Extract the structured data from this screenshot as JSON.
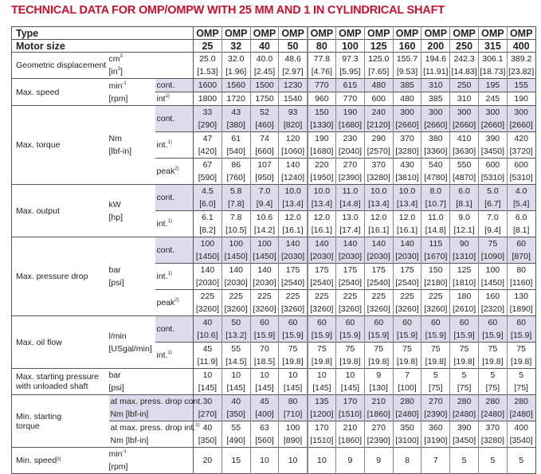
{
  "title": "TECHNICAL DATA FOR OMP/OMPW WITH 25 MM AND 1 IN CYLINDRICAL SHAFT",
  "header": {
    "type_label": "Type",
    "size_label": "Motor size",
    "types": [
      "OMP",
      "OMP",
      "OMP",
      "OMP",
      "OMP",
      "OMP",
      "OMP",
      "OMP",
      "OMP",
      "OMP",
      "OMP",
      "OMP"
    ],
    "sizes": [
      "25",
      "32",
      "40",
      "50",
      "80",
      "100",
      "125",
      "160",
      "200",
      "250",
      "315",
      "400"
    ]
  },
  "accent": "#c8102e",
  "shade": "#dcdcec",
  "groups": [
    {
      "label": [
        "Geometric displacement"
      ],
      "unit": [
        {
          "t": "cm",
          "sup": "3"
        },
        {
          "t": "[in",
          "sup": "3",
          "tail": "]"
        }
      ],
      "subs": [
        {
          "label": [],
          "shaded": false,
          "values": [
            [
              "25.0",
              "[1.53]"
            ],
            [
              "32.0",
              "[1.96]"
            ],
            [
              "40.0",
              "[2.45]"
            ],
            [
              "48.6",
              "[2.97]"
            ],
            [
              "77.8",
              "[4.76]"
            ],
            [
              "97.3",
              "[5.95]"
            ],
            [
              "125.0",
              "[7.65]"
            ],
            [
              "155.7",
              "[9.53]"
            ],
            [
              "194.6",
              "[11.91]"
            ],
            [
              "242.3",
              "[14.83]"
            ],
            [
              "306.1",
              "[18.73]"
            ],
            [
              "389.2",
              "[23.82]"
            ]
          ]
        }
      ]
    },
    {
      "label": [
        "Max. speed"
      ],
      "unit": [
        {
          "t": "min",
          "sup": "-1"
        },
        {
          "t": "[rpm]"
        }
      ],
      "subs": [
        {
          "label": [
            {
              "t": "cont."
            }
          ],
          "shaded": true,
          "values": [
            [
              "1600"
            ],
            [
              "1560"
            ],
            [
              "1500"
            ],
            [
              "1230"
            ],
            [
              "770"
            ],
            [
              "615"
            ],
            [
              "480"
            ],
            [
              "385"
            ],
            [
              "310"
            ],
            [
              "250"
            ],
            [
              "195"
            ],
            [
              "155"
            ]
          ]
        },
        {
          "label": [
            {
              "t": "int",
              "sup": "1)"
            }
          ],
          "shaded": false,
          "values": [
            [
              "1800"
            ],
            [
              "1720"
            ],
            [
              "1750"
            ],
            [
              "1540"
            ],
            [
              "960"
            ],
            [
              "770"
            ],
            [
              "600"
            ],
            [
              "480"
            ],
            [
              "385"
            ],
            [
              "310"
            ],
            [
              "245"
            ],
            [
              "190"
            ]
          ]
        }
      ]
    },
    {
      "label": [
        "Max. torque"
      ],
      "unit": [
        {
          "t": "Nm"
        },
        {
          "t": "[lbf-in]"
        }
      ],
      "subs": [
        {
          "label": [
            {
              "t": "cont."
            }
          ],
          "shaded": true,
          "values": [
            [
              "33",
              "[290]"
            ],
            [
              "43",
              "[380]"
            ],
            [
              "52",
              "[460]"
            ],
            [
              "93",
              "[820]"
            ],
            [
              "150",
              "[1330]"
            ],
            [
              "190",
              "[1680]"
            ],
            [
              "240",
              "[2120]"
            ],
            [
              "300",
              "[2660]"
            ],
            [
              "300",
              "[2660]"
            ],
            [
              "300",
              "[2660]"
            ],
            [
              "300",
              "[2660]"
            ],
            [
              "300",
              "[2660]"
            ]
          ]
        },
        {
          "label": [
            {
              "t": "int.",
              "sup": "1)"
            }
          ],
          "shaded": false,
          "values": [
            [
              "47",
              "[420]"
            ],
            [
              "61",
              "[540]"
            ],
            [
              "74",
              "[660]"
            ],
            [
              "120",
              "[1060]"
            ],
            [
              "190",
              "[1680]"
            ],
            [
              "230",
              "[2040]"
            ],
            [
              "290",
              "[2570]"
            ],
            [
              "370",
              "[3280]"
            ],
            [
              "380",
              "[3360]"
            ],
            [
              "410",
              "[3630]"
            ],
            [
              "390",
              "[3450]"
            ],
            [
              "420",
              "[3720]"
            ]
          ]
        },
        {
          "label": [
            {
              "t": "peak",
              "sup": "2)"
            }
          ],
          "shaded": false,
          "values": [
            [
              "67",
              "[590]"
            ],
            [
              "86",
              "[760]"
            ],
            [
              "107",
              "[950]"
            ],
            [
              "140",
              "[1240]"
            ],
            [
              "220",
              "[1950]"
            ],
            [
              "270",
              "[2390]"
            ],
            [
              "370",
              "[3280]"
            ],
            [
              "430",
              "[3810]"
            ],
            [
              "540",
              "[4780]"
            ],
            [
              "550",
              "[4870]"
            ],
            [
              "600",
              "[5310]"
            ],
            [
              "600",
              "[5310]"
            ]
          ]
        }
      ]
    },
    {
      "label": [
        "Max. output"
      ],
      "unit": [
        {
          "t": "kW"
        },
        {
          "t": "[hp]"
        }
      ],
      "subs": [
        {
          "label": [
            {
              "t": "cont."
            }
          ],
          "shaded": true,
          "values": [
            [
              "4.5",
              "[6.0]"
            ],
            [
              "5.8",
              "[7.8]"
            ],
            [
              "7.0",
              "[9.4]"
            ],
            [
              "10.0",
              "[13.4]"
            ],
            [
              "10.0",
              "[13.4]"
            ],
            [
              "11.0",
              "[14.8]"
            ],
            [
              "10.0",
              "[13.4]"
            ],
            [
              "10.0",
              "[13.4]"
            ],
            [
              "8.0",
              "[10.7]"
            ],
            [
              "6.0",
              "[8.1]"
            ],
            [
              "5.0",
              "[6.7]"
            ],
            [
              "4.0",
              "[5.4]"
            ]
          ]
        },
        {
          "label": [
            {
              "t": "int.",
              "sup": "1)"
            }
          ],
          "shaded": false,
          "values": [
            [
              "6.1",
              "[8.2]"
            ],
            [
              "7.8",
              "[10.5]"
            ],
            [
              "10.6",
              "[14.2]"
            ],
            [
              "12.0",
              "[16.1]"
            ],
            [
              "12.0",
              "[16.1]"
            ],
            [
              "13.0",
              "[17.4]"
            ],
            [
              "12.0",
              "[16.1]"
            ],
            [
              "12.0",
              "[16.1]"
            ],
            [
              "11.0",
              "[14.8]"
            ],
            [
              "9.0",
              "[12.1]"
            ],
            [
              "7.0",
              "[9.4]"
            ],
            [
              "6.0",
              "[8.1]"
            ]
          ]
        }
      ]
    },
    {
      "label": [
        "Max. pressure drop"
      ],
      "unit": [
        {
          "t": "bar"
        },
        {
          "t": "[psi]"
        }
      ],
      "subs": [
        {
          "label": [
            {
              "t": "cont."
            }
          ],
          "shaded": true,
          "values": [
            [
              "100",
              "[1450]"
            ],
            [
              "100",
              "[1450]"
            ],
            [
              "100",
              "[1450]"
            ],
            [
              "140",
              "[2030]"
            ],
            [
              "140",
              "[2030]"
            ],
            [
              "140",
              "[2030]"
            ],
            [
              "140",
              "[2030]"
            ],
            [
              "140",
              "[2030]"
            ],
            [
              "115",
              "[1670]"
            ],
            [
              "90",
              "[1310]"
            ],
            [
              "75",
              "[1090]"
            ],
            [
              "60",
              "[870]"
            ]
          ]
        },
        {
          "label": [
            {
              "t": "int.",
              "sup": "1)"
            }
          ],
          "shaded": false,
          "values": [
            [
              "140",
              "[2030]"
            ],
            [
              "140",
              "[2030]"
            ],
            [
              "140",
              "[2030]"
            ],
            [
              "175",
              "[2540]"
            ],
            [
              "175",
              "[2540]"
            ],
            [
              "175",
              "[2540]"
            ],
            [
              "175",
              "[2540]"
            ],
            [
              "175",
              "[2540]"
            ],
            [
              "150",
              "[2180]"
            ],
            [
              "125",
              "[1810]"
            ],
            [
              "100",
              "[1450]"
            ],
            [
              "80",
              "[1160]"
            ]
          ]
        },
        {
          "label": [
            {
              "t": "peak",
              "sup": "2)"
            }
          ],
          "shaded": false,
          "values": [
            [
              "225",
              "[3260]"
            ],
            [
              "225",
              "[3260]"
            ],
            [
              "225",
              "[3260]"
            ],
            [
              "225",
              "[3260]"
            ],
            [
              "225",
              "[3260]"
            ],
            [
              "225",
              "[3260]"
            ],
            [
              "225",
              "[3260]"
            ],
            [
              "225",
              "[3260]"
            ],
            [
              "225",
              "[3260]"
            ],
            [
              "180",
              "[2610]"
            ],
            [
              "160",
              "[2320]"
            ],
            [
              "130",
              "[1890]"
            ]
          ]
        }
      ]
    },
    {
      "label": [
        "Max. oil flow"
      ],
      "unit": [
        {
          "t": "l/min"
        },
        {
          "t": "[USgal/min]"
        }
      ],
      "subs": [
        {
          "label": [
            {
              "t": "cont."
            }
          ],
          "shaded": true,
          "values": [
            [
              "40",
              "[10.6]"
            ],
            [
              "50",
              "[13.2]"
            ],
            [
              "60",
              "[15.9]"
            ],
            [
              "60",
              "[15.9]"
            ],
            [
              "60",
              "[15.9]"
            ],
            [
              "60",
              "[15.9]"
            ],
            [
              "60",
              "[15.9]"
            ],
            [
              "60",
              "[15.9]"
            ],
            [
              "60",
              "[15.9]"
            ],
            [
              "60",
              "[15.9]"
            ],
            [
              "60",
              "[15.9]"
            ],
            [
              "60",
              "[15.9]"
            ]
          ]
        },
        {
          "label": [
            {
              "t": "int.",
              "sup": "1)"
            }
          ],
          "shaded": false,
          "values": [
            [
              "45",
              "[11.9]"
            ],
            [
              "55",
              "[14.5]"
            ],
            [
              "70",
              "[18.5]"
            ],
            [
              "75",
              "[19.8]"
            ],
            [
              "75",
              "[19.8]"
            ],
            [
              "75",
              "[19.8]"
            ],
            [
              "75",
              "[19.8]"
            ],
            [
              "75",
              "[19.8]"
            ],
            [
              "75",
              "[19.8]"
            ],
            [
              "75",
              "[19.8]"
            ],
            [
              "75",
              "[19.8]"
            ],
            [
              "75",
              "[19.8]"
            ]
          ]
        }
      ]
    },
    {
      "label": [
        "Max. starting pressure",
        "with unloaded shaft"
      ],
      "unit": [
        {
          "t": "bar"
        },
        {
          "t": "[psi]"
        }
      ],
      "subs": [
        {
          "label": [],
          "shaded": false,
          "values": [
            [
              "10",
              "[145]"
            ],
            [
              "10",
              "[145]"
            ],
            [
              "10",
              "[145]"
            ],
            [
              "10",
              "[145]"
            ],
            [
              "10",
              "[145]"
            ],
            [
              "10",
              "[145]"
            ],
            [
              "9",
              "[130]"
            ],
            [
              "7",
              "[100]"
            ],
            [
              "5",
              "[75]"
            ],
            [
              "5",
              "[75]"
            ],
            [
              "5",
              "[75]"
            ],
            [
              "5",
              "[75]"
            ]
          ]
        }
      ]
    },
    {
      "label": [
        "Min. starting",
        "torque"
      ],
      "unit": null,
      "subs": [
        {
          "label": [
            {
              "t": "at max. press. drop cont."
            },
            {
              "t": "Nm [lbf-in]"
            }
          ],
          "shaded": true,
          "values": [
            [
              "30",
              "[270]"
            ],
            [
              "40",
              "[350]"
            ],
            [
              "45",
              "[400]"
            ],
            [
              "80",
              "[710]"
            ],
            [
              "135",
              "[1200]"
            ],
            [
              "170",
              "[1510]"
            ],
            [
              "210",
              "[1860]"
            ],
            [
              "280",
              "[2480]"
            ],
            [
              "270",
              "[2390]"
            ],
            [
              "280",
              "[2480]"
            ],
            [
              "280",
              "[2480]"
            ],
            [
              "280",
              "[2480]"
            ]
          ]
        },
        {
          "label": [
            {
              "t": "at max. press. drop int.",
              "sup": "1)"
            },
            {
              "t": "Nm [lbf-in]"
            }
          ],
          "shaded": false,
          "values": [
            [
              "40",
              "[350]"
            ],
            [
              "55",
              "[490]"
            ],
            [
              "63",
              "[560]"
            ],
            [
              "100",
              "[890]"
            ],
            [
              "170",
              "[1510]"
            ],
            [
              "210",
              "[1860]"
            ],
            [
              "270",
              "[2390]"
            ],
            [
              "350",
              "[3100]"
            ],
            [
              "360",
              "[3190]"
            ],
            [
              "390",
              "[3450]"
            ],
            [
              "370",
              "[3280]"
            ],
            [
              "400",
              "[3540]"
            ]
          ]
        }
      ]
    },
    {
      "label": [
        {
          "t": "Min. speed",
          "sup": "3)"
        }
      ],
      "unit": [
        {
          "t": "min",
          "sup": "-1"
        },
        {
          "t": "[rpm]"
        }
      ],
      "subs": [
        {
          "label": [],
          "shaded": false,
          "values": [
            [
              "20"
            ],
            [
              "15"
            ],
            [
              "10"
            ],
            [
              "10"
            ],
            [
              "10"
            ],
            [
              "9"
            ],
            [
              "9"
            ],
            [
              "8"
            ],
            [
              "7"
            ],
            [
              "5"
            ],
            [
              "5"
            ],
            [
              "5"
            ]
          ]
        }
      ]
    }
  ]
}
